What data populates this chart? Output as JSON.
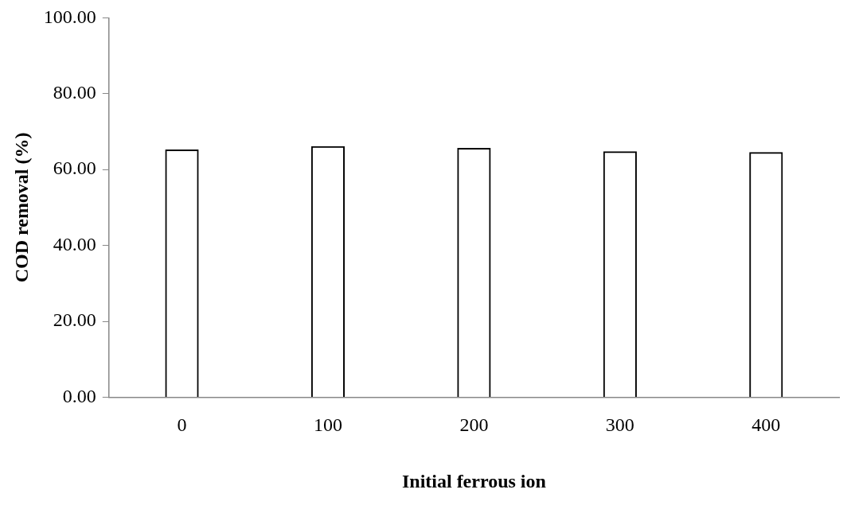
{
  "chart_data": {
    "type": "bar",
    "xlabel": "Initial ferrous ion",
    "ylabel": "COD removal (%)",
    "categories": [
      "0",
      "100",
      "200",
      "300",
      "400"
    ],
    "values": [
      65.3,
      66.2,
      65.7,
      64.8,
      64.6
    ],
    "color": "#000000",
    "ylim": [
      0,
      100
    ],
    "yticks": [
      {
        "value": 0,
        "label": "0.00"
      },
      {
        "value": 20,
        "label": "20.00"
      },
      {
        "value": 40,
        "label": "40.00"
      },
      {
        "value": 60,
        "label": "60.00"
      },
      {
        "value": 80,
        "label": "80.00"
      },
      {
        "value": 100,
        "label": "100.00"
      }
    ],
    "grid": false,
    "legend": false
  }
}
